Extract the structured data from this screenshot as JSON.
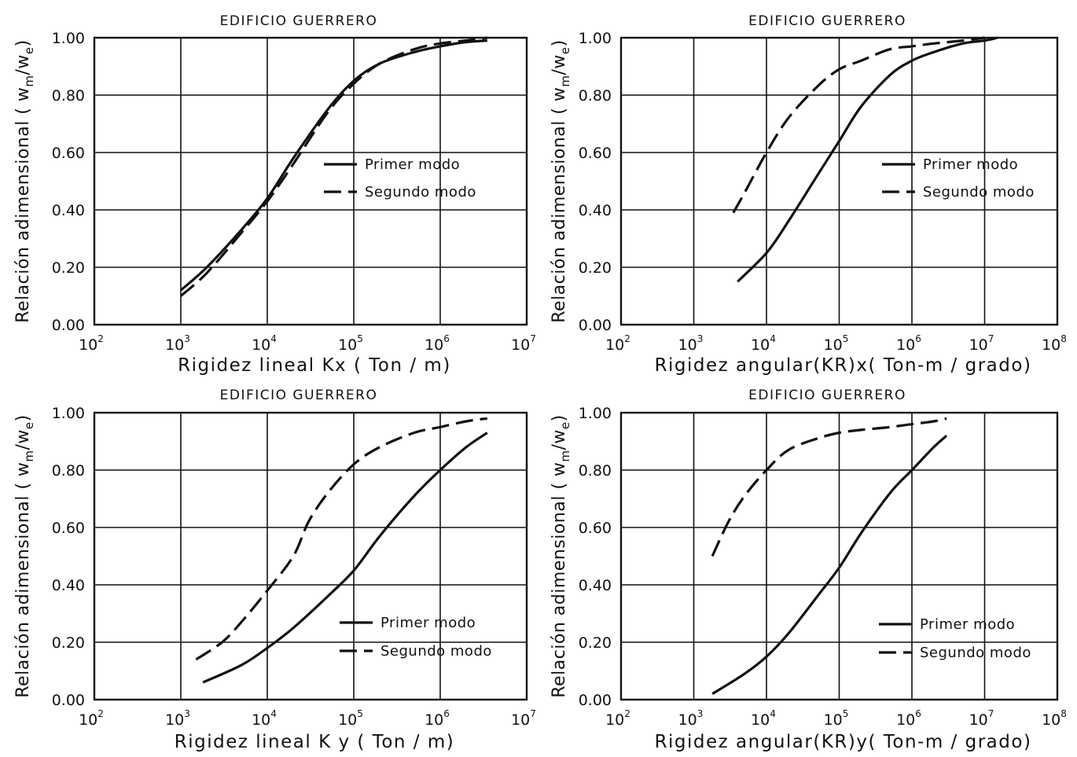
{
  "chart_data": [
    {
      "type": "line",
      "title": "EDIFICIO GUERRERO",
      "xlabel": "Rigidez lineal Kx ( Ton / m)",
      "ylabel": "Relación adimensional ( w",
      "ylabel_sub1": "m",
      "ylabel_mid": "/w",
      "ylabel_sub2": "e",
      "ylabel_end": ")",
      "x_scale": "log",
      "xlim": [
        100,
        10000000
      ],
      "ylim": [
        0,
        1.0
      ],
      "x_ticks": [
        {
          "base": "10",
          "exp": "2"
        },
        {
          "base": "10",
          "exp": "3"
        },
        {
          "base": "10",
          "exp": "4"
        },
        {
          "base": "10",
          "exp": "5"
        },
        {
          "base": "10",
          "exp": "6"
        },
        {
          "base": "10",
          "exp": "7"
        }
      ],
      "y_ticks": [
        "0.00",
        "0.20",
        "0.40",
        "0.60",
        "0.80",
        "1.00"
      ],
      "grid": true,
      "legend_position": "center-right",
      "series": [
        {
          "name": "Primer modo",
          "style": "solid",
          "x": [
            1000,
            2000,
            5000,
            10000,
            20000,
            50000,
            100000,
            200000,
            500000,
            1000000,
            2000000,
            3500000
          ],
          "y": [
            0.12,
            0.2,
            0.33,
            0.44,
            0.58,
            0.75,
            0.85,
            0.91,
            0.95,
            0.97,
            0.985,
            0.99
          ]
        },
        {
          "name": "Segundo modo",
          "style": "dashed",
          "x": [
            1000,
            2000,
            5000,
            10000,
            20000,
            50000,
            100000,
            200000,
            500000,
            1000000,
            2000000,
            3500000
          ],
          "y": [
            0.1,
            0.18,
            0.32,
            0.43,
            0.56,
            0.74,
            0.84,
            0.91,
            0.96,
            0.98,
            0.99,
            1.0
          ]
        }
      ]
    },
    {
      "type": "line",
      "title": "EDIFICIO GUERRERO",
      "xlabel": "Rigidez angular(KR)x( Ton-m / grado)",
      "ylabel": "Relación adimensional ( w",
      "ylabel_sub1": "m",
      "ylabel_mid": "/w",
      "ylabel_sub2": "e",
      "ylabel_end": ")",
      "x_scale": "log",
      "xlim": [
        100,
        100000000
      ],
      "ylim": [
        0,
        1.0
      ],
      "x_ticks": [
        {
          "base": "10",
          "exp": "2"
        },
        {
          "base": "10",
          "exp": "3"
        },
        {
          "base": "10",
          "exp": "4"
        },
        {
          "base": "10",
          "exp": "5"
        },
        {
          "base": "10",
          "exp": "6"
        },
        {
          "base": "10",
          "exp": "7"
        },
        {
          "base": "10",
          "exp": "8"
        }
      ],
      "y_ticks": [
        "0.00",
        "0.20",
        "0.40",
        "0.60",
        "0.80",
        "1.00"
      ],
      "grid": true,
      "legend_position": "center-right",
      "series": [
        {
          "name": "Primer modo",
          "style": "solid",
          "x": [
            4000,
            10000,
            20000,
            50000,
            100000,
            200000,
            500000,
            1000000,
            2000000,
            5000000,
            10000000,
            15000000
          ],
          "y": [
            0.15,
            0.25,
            0.36,
            0.52,
            0.64,
            0.76,
            0.87,
            0.92,
            0.95,
            0.98,
            0.99,
            1.0
          ]
        },
        {
          "name": "Segundo modo",
          "style": "dashed",
          "x": [
            3500,
            5000,
            10000,
            20000,
            50000,
            100000,
            200000,
            500000,
            1000000,
            2000000,
            5000000,
            10000000
          ],
          "y": [
            0.39,
            0.46,
            0.6,
            0.72,
            0.83,
            0.89,
            0.92,
            0.96,
            0.97,
            0.98,
            0.99,
            1.0
          ]
        }
      ]
    },
    {
      "type": "line",
      "title": "EDIFICIO GUERRERO",
      "xlabel": "Rigidez lineal  K y ( Ton / m)",
      "ylabel": "Relación adimensional ( w",
      "ylabel_sub1": "m",
      "ylabel_mid": "/w",
      "ylabel_sub2": "e",
      "ylabel_end": ")",
      "x_scale": "log",
      "xlim": [
        100,
        10000000
      ],
      "ylim": [
        0,
        1.0
      ],
      "x_ticks": [
        {
          "base": "10",
          "exp": "2"
        },
        {
          "base": "10",
          "exp": "3"
        },
        {
          "base": "10",
          "exp": "4"
        },
        {
          "base": "10",
          "exp": "5"
        },
        {
          "base": "10",
          "exp": "6"
        },
        {
          "base": "10",
          "exp": "7"
        }
      ],
      "y_ticks": [
        "0.00",
        "0.20",
        "0.40",
        "0.60",
        "0.80",
        "1.00"
      ],
      "grid": true,
      "legend_position": "bottom-right",
      "series": [
        {
          "name": "Primer modo",
          "style": "solid",
          "x": [
            1800,
            5000,
            10000,
            20000,
            50000,
            100000,
            200000,
            500000,
            1000000,
            2000000,
            3500000
          ],
          "y": [
            0.06,
            0.12,
            0.18,
            0.25,
            0.36,
            0.45,
            0.57,
            0.71,
            0.8,
            0.88,
            0.93
          ]
        },
        {
          "name": "Segundo modo",
          "style": "dashed",
          "x": [
            1500,
            3000,
            5000,
            10000,
            20000,
            30000,
            50000,
            100000,
            200000,
            500000,
            1000000,
            2000000,
            3500000
          ],
          "y": [
            0.14,
            0.2,
            0.27,
            0.38,
            0.5,
            0.62,
            0.72,
            0.82,
            0.88,
            0.93,
            0.95,
            0.97,
            0.98
          ]
        }
      ]
    },
    {
      "type": "line",
      "title": "EDIFICIO GUERRERO",
      "xlabel": "Rigidez angular(KR)y( Ton-m / grado)",
      "ylabel": "Relación adimensional ( w",
      "ylabel_sub1": "m",
      "ylabel_mid": "/w",
      "ylabel_sub2": "e",
      "ylabel_end": ")",
      "x_scale": "log",
      "xlim": [
        100,
        100000000
      ],
      "ylim": [
        0,
        1.0
      ],
      "x_ticks": [
        {
          "base": "10",
          "exp": "2"
        },
        {
          "base": "10",
          "exp": "3"
        },
        {
          "base": "10",
          "exp": "4"
        },
        {
          "base": "10",
          "exp": "5"
        },
        {
          "base": "10",
          "exp": "6"
        },
        {
          "base": "10",
          "exp": "7"
        },
        {
          "base": "10",
          "exp": "8"
        }
      ],
      "y_ticks": [
        "0.00",
        "0.20",
        "0.40",
        "0.60",
        "0.80",
        "1.00"
      ],
      "grid": true,
      "legend_position": "bottom-right",
      "series": [
        {
          "name": "Primer modo",
          "style": "solid",
          "x": [
            1800,
            5000,
            10000,
            20000,
            50000,
            100000,
            200000,
            500000,
            1000000,
            2000000,
            3000000
          ],
          "y": [
            0.02,
            0.09,
            0.15,
            0.23,
            0.36,
            0.46,
            0.58,
            0.72,
            0.8,
            0.88,
            0.92
          ]
        },
        {
          "name": "Segundo modo",
          "style": "dashed",
          "x": [
            1800,
            3000,
            5000,
            10000,
            20000,
            50000,
            100000,
            200000,
            500000,
            1000000,
            2000000,
            3000000
          ],
          "y": [
            0.5,
            0.62,
            0.71,
            0.8,
            0.87,
            0.91,
            0.93,
            0.94,
            0.95,
            0.96,
            0.97,
            0.98
          ]
        }
      ]
    }
  ]
}
